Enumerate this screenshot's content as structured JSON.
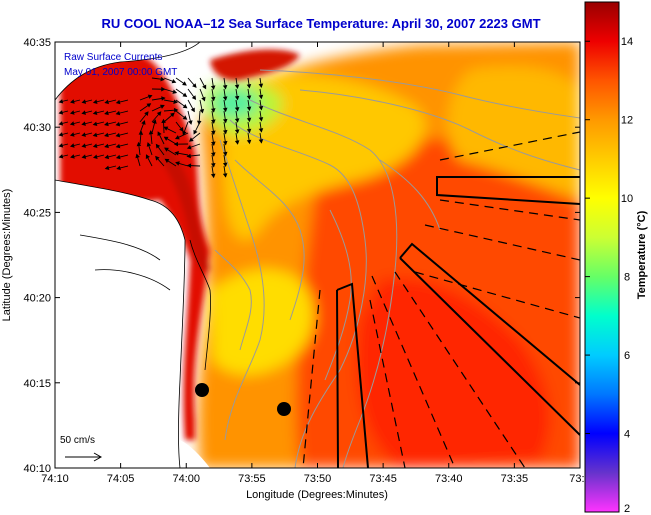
{
  "chart_data": {
    "type": "heatmap",
    "title": "RU COOL  NOAA–12  Sea Surface Temperature:  April 30, 2007 2223 GMT",
    "xlabel": "Longitude (Degrees:Minutes)",
    "ylabel": "Latitude (Degrees:Minutes)",
    "x_ticks": [
      "74:10",
      "74:05",
      "74:00",
      "73:55",
      "73:50",
      "73:45",
      "73:40",
      "73:35",
      "73:3"
    ],
    "y_ticks": [
      "40:35",
      "40:30",
      "40:25",
      "40:20",
      "40:15",
      "40:10"
    ],
    "xlim": [
      "74:10",
      "73:30"
    ],
    "ylim": [
      "40:10",
      "40:35"
    ],
    "colorbar": {
      "label": "Temperature (°C)",
      "range": [
        2,
        15
      ],
      "ticks": [
        "14",
        "12",
        "10",
        "8",
        "6",
        "4",
        "2"
      ],
      "colors": [
        "#ff33ff",
        "#6633cc",
        "#0000ff",
        "#0077ff",
        "#00ccff",
        "#00ffcc",
        "#66ff66",
        "#ccff33",
        "#ffff00",
        "#ffcc00",
        "#ff9900",
        "#ff5500",
        "#ee0000",
        "#990000"
      ]
    },
    "annotations": {
      "line1": "Raw Surface Currents",
      "line2": "May 01, 2007 00:00 GMT",
      "scale_label": "50 cm/s"
    },
    "grid": false,
    "legend": "colorbar right"
  }
}
